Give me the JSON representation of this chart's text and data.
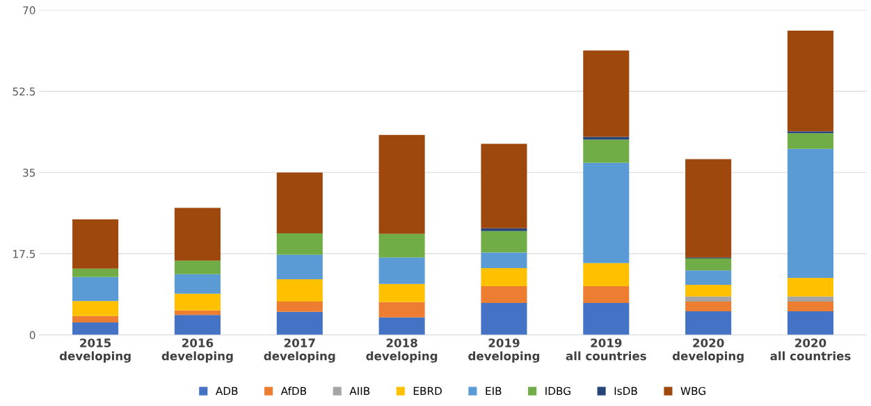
{
  "chart_data": {
    "type": "bar",
    "stacked": true,
    "categories": [
      "2015\ndeveloping",
      "2016\ndeveloping",
      "2017\ndeveloping",
      "2018\ndeveloping",
      "2019\ndeveloping",
      "2019\nall countries",
      "2020\ndeveloping",
      "2020\nall countries"
    ],
    "series": [
      {
        "name": "ADB",
        "color": "#4472c4",
        "values": [
          2.7,
          4.3,
          5.0,
          3.8,
          6.9,
          6.9,
          5.1,
          5.1
        ]
      },
      {
        "name": "AfDB",
        "color": "#ed7d31",
        "values": [
          1.4,
          1.0,
          2.2,
          3.3,
          3.6,
          3.6,
          2.1,
          2.1
        ]
      },
      {
        "name": "AIIB",
        "color": "#a5a5a5",
        "values": [
          0,
          0,
          0,
          0,
          0,
          0,
          1.1,
          1.1
        ]
      },
      {
        "name": "EBRD",
        "color": "#ffc000",
        "values": [
          3.2,
          3.6,
          4.8,
          3.9,
          3.9,
          5.0,
          2.5,
          4.0
        ]
      },
      {
        "name": "EIB",
        "color": "#5b9bd5",
        "values": [
          5.2,
          4.2,
          5.3,
          5.7,
          3.4,
          21.6,
          3.1,
          27.8
        ]
      },
      {
        "name": "IDBG",
        "color": "#70ad47",
        "values": [
          1.8,
          2.9,
          4.6,
          5.1,
          4.6,
          5.0,
          2.6,
          3.4
        ]
      },
      {
        "name": "IsDB",
        "color": "#264478",
        "values": [
          0,
          0,
          0,
          0,
          0.6,
          0.6,
          0.2,
          0.4
        ]
      },
      {
        "name": "WBG",
        "color": "#9e480e",
        "values": [
          10.6,
          11.4,
          13.1,
          21.3,
          18.2,
          18.6,
          21.2,
          21.7
        ]
      }
    ],
    "ylim": [
      0,
      70
    ],
    "yticks": [
      0,
      17.5,
      35,
      52.5,
      70
    ],
    "grid": "y",
    "legend": "bottom"
  }
}
